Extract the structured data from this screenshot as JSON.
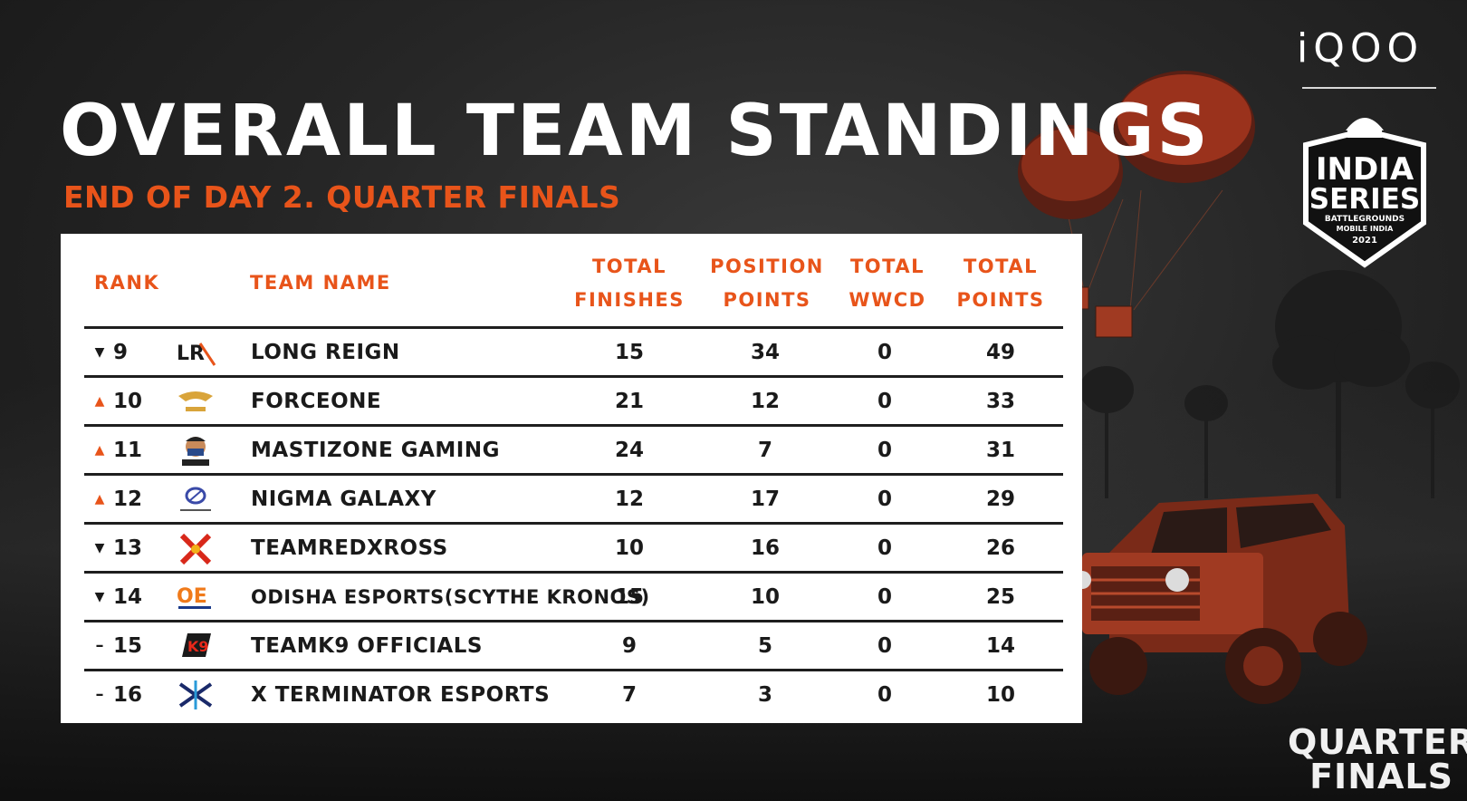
{
  "header": {
    "title": "OVERALL TEAM STANDINGS",
    "subtitle": "END OF DAY 2. QUARTER FINALS"
  },
  "branding": {
    "sponsor": "iQOO",
    "badge_line1": "INDIA",
    "badge_line2": "SERIES",
    "badge_line3": "BATTLEGROUNDS",
    "badge_line4": "MOBILE INDIA",
    "badge_year": "2021",
    "stage_line1": "QUARTER",
    "stage_line2": "FINALS"
  },
  "columns": {
    "rank": "RANK",
    "team": "TEAM NAME",
    "finishes_1": "TOTAL",
    "finishes_2": "FINISHES",
    "position_1": "POSITION",
    "position_2": "POINTS",
    "wwcd_1": "TOTAL",
    "wwcd_2": "WWCD",
    "total_1": "TOTAL",
    "total_2": "POINTS"
  },
  "rows": [
    {
      "trend": "down",
      "rank": "9",
      "logo": "long-reign-logo",
      "team": "LONG REIGN",
      "finishes": "15",
      "position_points": "34",
      "wwcd": "0",
      "total_points": "49"
    },
    {
      "trend": "up",
      "rank": "10",
      "logo": "forceone-logo",
      "team": "FORCEONE",
      "finishes": "21",
      "position_points": "12",
      "wwcd": "0",
      "total_points": "33"
    },
    {
      "trend": "up",
      "rank": "11",
      "logo": "mastizone-logo",
      "team": "MASTIZONE GAMING",
      "finishes": "24",
      "position_points": "7",
      "wwcd": "0",
      "total_points": "31"
    },
    {
      "trend": "up",
      "rank": "12",
      "logo": "nigma-galaxy-logo",
      "team": "NIGMA GALAXY",
      "finishes": "12",
      "position_points": "17",
      "wwcd": "0",
      "total_points": "29"
    },
    {
      "trend": "down",
      "rank": "13",
      "logo": "teamredxross-logo",
      "team": "TEAMREDXROSS",
      "finishes": "10",
      "position_points": "16",
      "wwcd": "0",
      "total_points": "26"
    },
    {
      "trend": "down",
      "rank": "14",
      "logo": "odisha-esports-logo",
      "team": "ODISHA ESPORTS(SCYTHE KRONOS)",
      "finishes": "15",
      "position_points": "10",
      "wwcd": "0",
      "total_points": "25"
    },
    {
      "trend": "same",
      "rank": "15",
      "logo": "teamk9-logo",
      "team": "TEAMK9 OFFICIALS",
      "finishes": "9",
      "position_points": "5",
      "wwcd": "0",
      "total_points": "14"
    },
    {
      "trend": "same",
      "rank": "16",
      "logo": "x-terminator-logo",
      "team": "X TERMINATOR ESPORTS",
      "finishes": "7",
      "position_points": "3",
      "wwcd": "0",
      "total_points": "10"
    }
  ],
  "colors": {
    "accent": "#e8541a",
    "background": "#262626",
    "table": "#ffffff",
    "text": "#1a1a1a"
  }
}
